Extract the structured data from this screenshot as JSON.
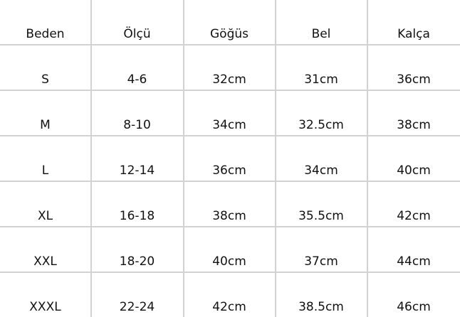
{
  "headers": [
    "Beden",
    "Ölçü",
    "Göğüs",
    "Bel",
    "Kalça"
  ],
  "rows": [
    [
      "S",
      "4-6",
      "32cm",
      "31cm",
      "36cm"
    ],
    [
      "M",
      "8-10",
      "34cm",
      "32.5cm",
      "38cm"
    ],
    [
      "L",
      "12-14",
      "36cm",
      "34cm",
      "40cm"
    ],
    [
      "XL",
      "16-18",
      "38cm",
      "35.5cm",
      "42cm"
    ],
    [
      "XXL",
      "18-20",
      "40cm",
      "37cm",
      "44cm"
    ],
    [
      "XXXL",
      "22-24",
      "42cm",
      "38.5cm",
      "46cm"
    ]
  ],
  "colors": {
    "grid": "#d2d2d2",
    "text": "#111111"
  }
}
